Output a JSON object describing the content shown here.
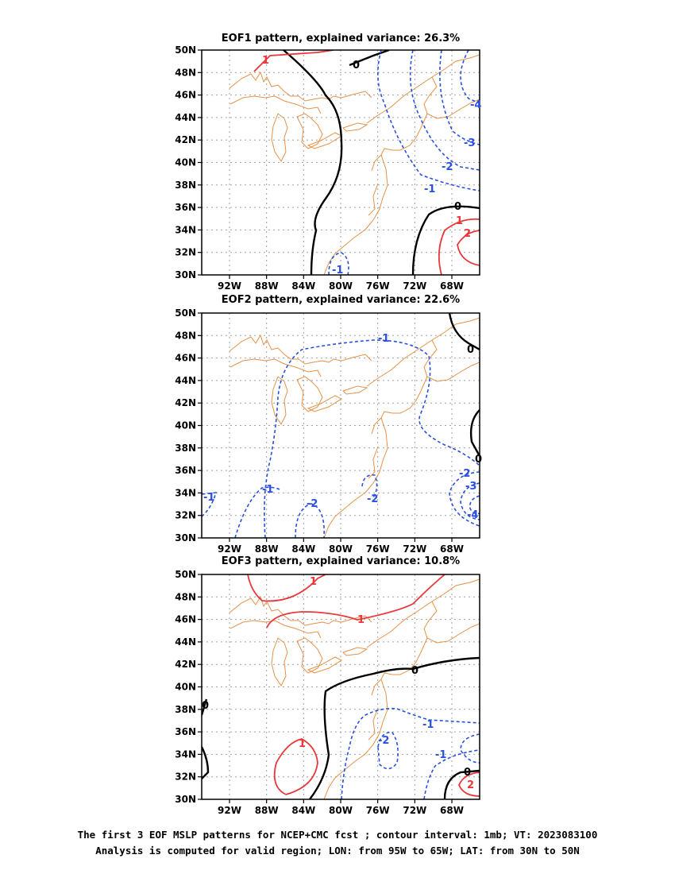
{
  "chart_data": {
    "type": "contour-map",
    "contour_interval": "1mb",
    "panels": [
      {
        "id": "eof1",
        "title": "EOF1 pattern, explained variance: 26.3%",
        "explained_variance_pct": 26.3,
        "contour_labels": [
          "1",
          "0",
          "-4",
          "-3",
          "-2",
          "-1",
          "0",
          "1",
          "2",
          "-1"
        ]
      },
      {
        "id": "eof2",
        "title": "EOF2 pattern, explained variance: 22.6%",
        "explained_variance_pct": 22.6,
        "contour_labels": [
          "-1",
          "0",
          "0",
          "-1",
          "-1",
          "-2",
          "-2",
          "-2",
          "-3",
          "-4"
        ]
      },
      {
        "id": "eof3",
        "title": "EOF3 pattern, explained variance: 10.8%",
        "explained_variance_pct": 10.8,
        "contour_labels": [
          "1",
          "1",
          "0",
          "0",
          "-1",
          "-2",
          "-1",
          "1",
          "0",
          "2"
        ]
      }
    ],
    "x_ticks": [
      "92W",
      "88W",
      "84W",
      "80W",
      "76W",
      "72W",
      "68W"
    ],
    "y_ticks": [
      "30N",
      "32N",
      "34N",
      "36N",
      "38N",
      "40N",
      "42N",
      "44N",
      "46N",
      "48N",
      "50N"
    ],
    "xlim": [
      -95,
      -65
    ],
    "ylim": [
      30,
      50
    ],
    "grid": true,
    "colors": {
      "positive": "#e8383b",
      "negative": "#2a50e0",
      "zero": "#000000",
      "coast": "#e49148",
      "grid": "#a0a0a0"
    }
  },
  "caption": {
    "line1": "The first 3 EOF MSLP patterns for NCEP+CMC fcst ; contour interval: 1mb; VT: 2023083100",
    "line2": "Analysis is computed for valid region; LON: from 95W to 65W; LAT: from 30N to 50N"
  }
}
